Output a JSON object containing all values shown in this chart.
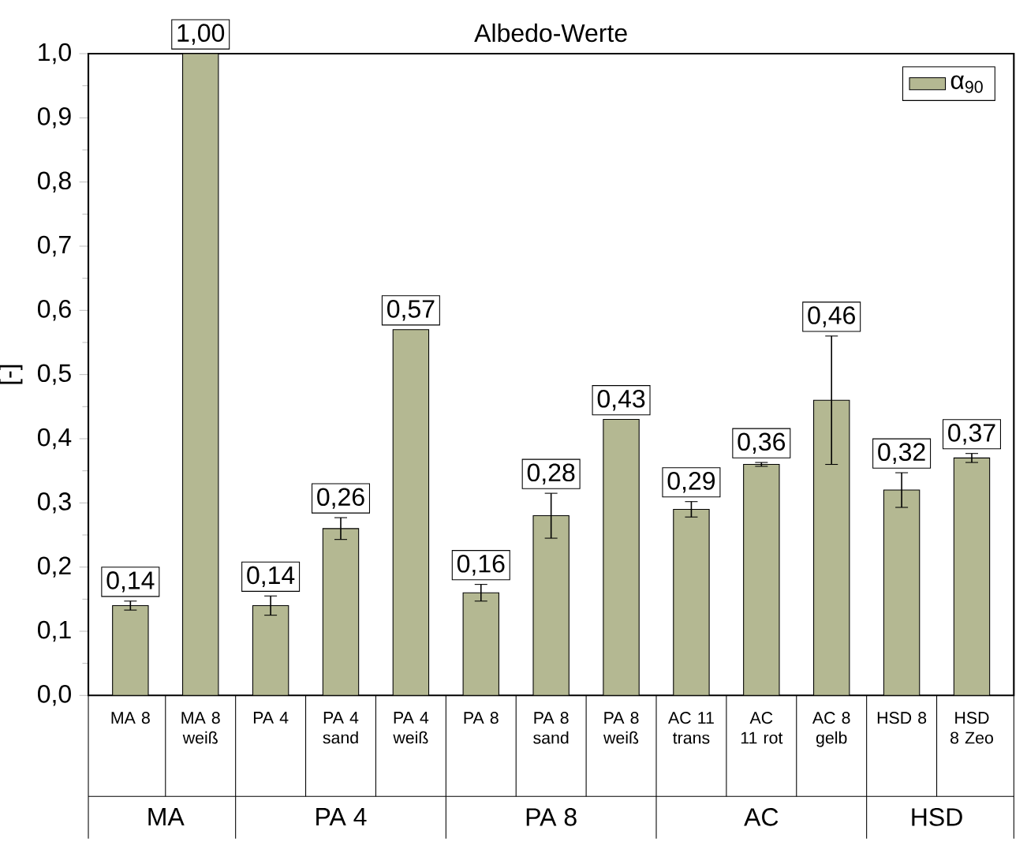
{
  "chart_data": {
    "type": "bar",
    "title": "Albedo-Werte",
    "ylabel": "[-]",
    "categories": [
      "MA 8",
      "MA 8 weiß",
      "PA 4",
      "PA 4 sand",
      "PA 4 weiß",
      "PA 8",
      "PA 8 sand",
      "PA 8 weiß",
      "AC 11 trans",
      "AC 11 rot",
      "AC 8 gelb",
      "HSD 8",
      "HSD 8 Zeo"
    ],
    "series": [
      {
        "name": "α$_{90}$",
        "color": "#b4b892",
        "values": [
          0.14,
          1.0,
          0.14,
          0.26,
          0.57,
          0.16,
          0.28,
          0.43,
          0.29,
          0.36,
          0.46,
          0.32,
          0.37
        ],
        "errors": [
          0.007,
          null,
          0.015,
          0.017,
          null,
          0.013,
          0.035,
          null,
          0.012,
          0.003,
          0.1,
          0.027,
          0.007
        ],
        "value_labels": [
          "0,14",
          "1,00",
          "0,14",
          "0,26",
          "0,57",
          "0,16",
          "0,28",
          "0,43",
          "0,29",
          "0,36",
          "0,46",
          "0,32",
          "0,37"
        ]
      }
    ],
    "ylim": [
      0,
      1
    ],
    "yticks": [
      {
        "value": 0,
        "label": "0,0"
      },
      {
        "value": 0.1,
        "label": "0,1"
      },
      {
        "value": 0.2,
        "label": "0,2"
      },
      {
        "value": 0.3,
        "label": "0,3"
      },
      {
        "value": 0.4,
        "label": "0,4"
      },
      {
        "value": 0.5,
        "label": "0,5"
      },
      {
        "value": 0.6,
        "label": "0,6"
      },
      {
        "value": 0.7,
        "label": "0,7"
      },
      {
        "value": 0.8,
        "label": "0,8"
      },
      {
        "value": 0.9,
        "label": "0,9"
      },
      {
        "value": 1,
        "label": "1,0"
      }
    ],
    "annotations": [
      "MA",
      "PA 4",
      "PA 8",
      "AC",
      "HSD"
    ],
    "legend": "top right",
    "grid": false
  }
}
